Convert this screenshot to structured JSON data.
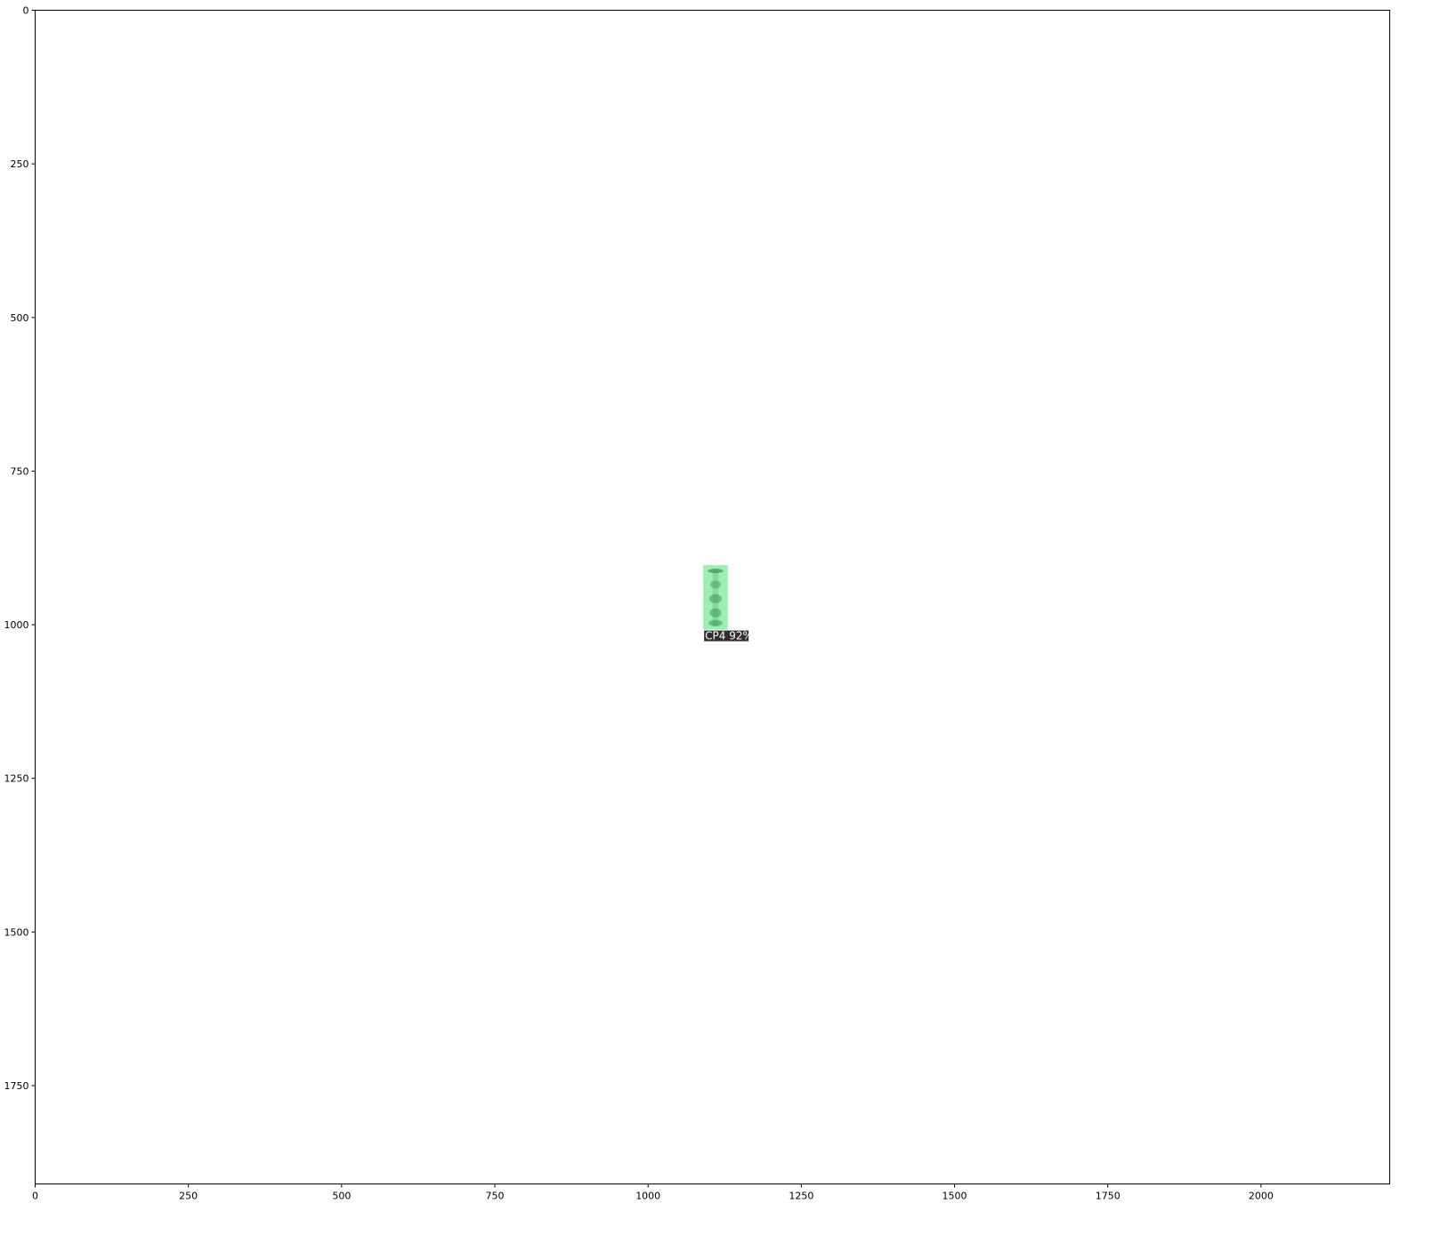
{
  "figure": {
    "image_width": 2210,
    "image_height": 1910,
    "x_ticks": [
      0,
      250,
      500,
      750,
      1000,
      1250,
      1500,
      1750,
      2000
    ],
    "y_ticks": [
      0,
      250,
      500,
      750,
      1000,
      1250,
      1500,
      1750
    ],
    "x_tick_labels": [
      "0",
      "250",
      "500",
      "750",
      "1000",
      "1250",
      "1500",
      "1750",
      "2000"
    ],
    "y_tick_labels": [
      "0",
      "250",
      "500",
      "750",
      "1000",
      "1250",
      "1500",
      "1750"
    ]
  },
  "detection": {
    "label": "CP4 92%",
    "color": "#7ee89a",
    "label_background": "#2f2f2f",
    "box": {
      "x_min": 1090,
      "y_min": 903,
      "x_max": 1130,
      "y_max": 1008
    }
  }
}
